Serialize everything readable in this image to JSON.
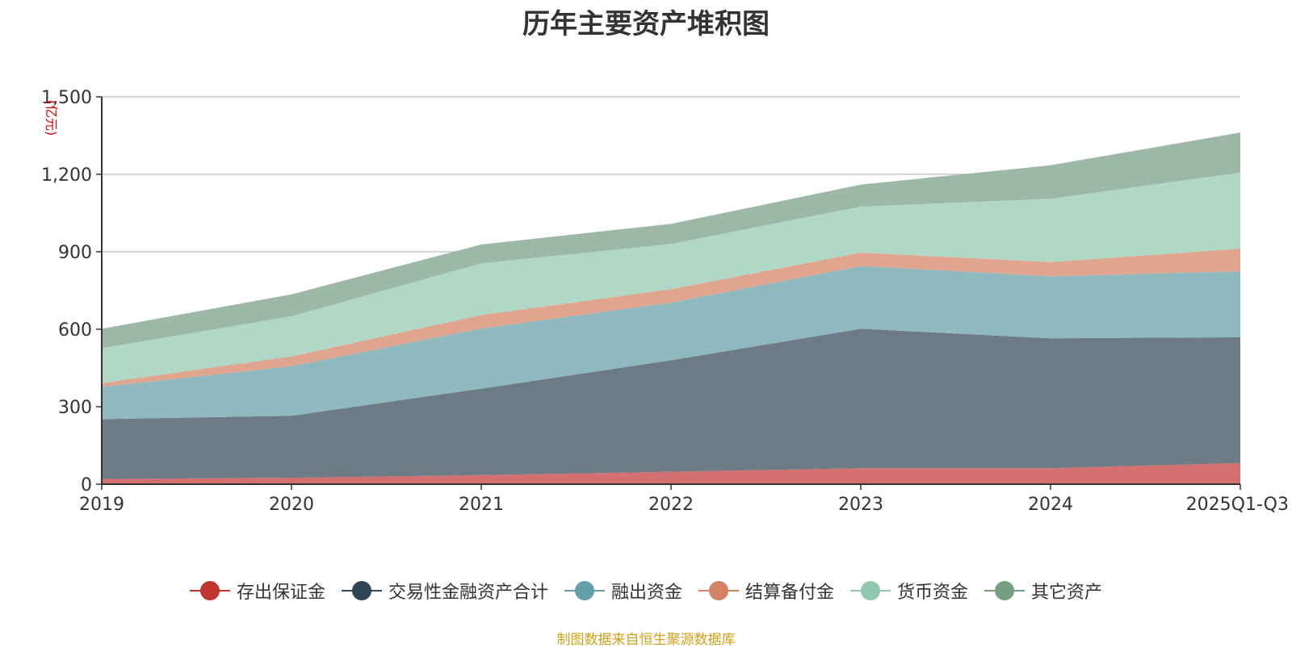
{
  "chart_data": {
    "type": "area",
    "stacked": true,
    "title": "历年主要资产堆积图",
    "ylabel": "(亿元)",
    "xlabel": "",
    "categories": [
      "2019",
      "2020",
      "2021",
      "2022",
      "2023",
      "2024",
      "2025Q1-Q3"
    ],
    "ylim": [
      0,
      1500
    ],
    "yticks": [
      0,
      300,
      600,
      900,
      1200,
      1500
    ],
    "ytick_labels": [
      "0",
      "300",
      "600",
      "900",
      "1,200",
      "1,500"
    ],
    "grid": true,
    "legend_position": "bottom-center",
    "series": [
      {
        "name": "存出保证金",
        "color": "#c23531",
        "fill": "#d4706f",
        "values": [
          20,
          25,
          35,
          48,
          62,
          62,
          82
        ]
      },
      {
        "name": "交易性金融资产合计",
        "color": "#2f4554",
        "fill": "#6d7b87",
        "values": [
          232,
          240,
          335,
          432,
          540,
          503,
          487
        ]
      },
      {
        "name": "融出资金",
        "color": "#61a0a8",
        "fill": "#90b9bf",
        "values": [
          125,
          192,
          233,
          223,
          243,
          240,
          255
        ]
      },
      {
        "name": "结算备付金",
        "color": "#d48265",
        "fill": "#e0a58f",
        "values": [
          15,
          38,
          52,
          52,
          52,
          55,
          88
        ]
      },
      {
        "name": "货币资金",
        "color": "#91c7ae",
        "fill": "#b1d8c6",
        "values": [
          135,
          155,
          200,
          175,
          178,
          245,
          295
        ]
      },
      {
        "name": "其它资产",
        "color": "#749f83",
        "fill": "#9db8a6",
        "values": [
          75,
          85,
          73,
          78,
          85,
          130,
          155
        ]
      }
    ],
    "source": "制图数据来自恒生聚源数据库"
  }
}
